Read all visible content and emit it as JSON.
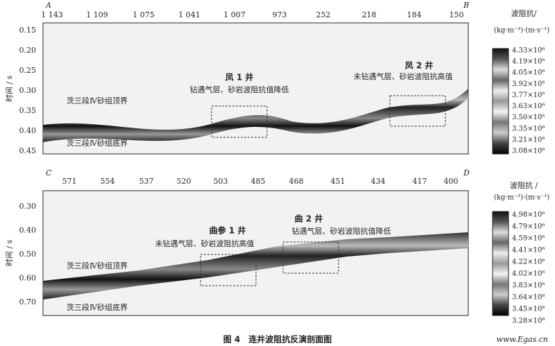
{
  "panels": [
    {
      "corner_left": "A",
      "corner_right": "B",
      "trace_labels": [
        "1 143",
        "1 109",
        "1 075",
        "1 041",
        "1 007",
        "973",
        "252",
        "218",
        "184",
        "150"
      ],
      "y_axis_label": "时间 / s",
      "time_ticks": [
        "0.15",
        "0.20",
        "0.25",
        "0.30",
        "0.35",
        "0.40",
        "0.45"
      ],
      "wells": [
        {
          "name": "凤 1 井",
          "note": "钻遇气层、砂岩波阻抗值降低"
        },
        {
          "name": "凤 2 井",
          "note": "未钻遇气层、砂岩波阻抗高值"
        }
      ],
      "top_label": "茨三段Ⅳ砂组顶界",
      "bottom_label": "茨三段Ⅳ砂组底界",
      "colorbar": {
        "title": "波阻抗/",
        "unit": "(kg·m⁻³)·(m·s⁻¹)",
        "ticks": [
          "4.33×10⁶",
          "4.19×10⁶",
          "4.05×10⁶",
          "3.92×10⁶",
          "3.77×10⁶",
          "3.63×10⁶",
          "3.50×10⁶",
          "3.35×10⁶",
          "3.21×10⁶",
          "3.08×10⁶"
        ]
      }
    },
    {
      "corner_left": "C",
      "corner_right": "D",
      "trace_labels": [
        "571",
        "554",
        "537",
        "520",
        "503",
        "485",
        "468",
        "451",
        "434",
        "417",
        "400"
      ],
      "y_axis_label": "时间 / s",
      "time_ticks": [
        "0.30",
        "0.40",
        "0.50",
        "0.60",
        "0.70"
      ],
      "wells": [
        {
          "name": "曲参 1 井",
          "note": "未钻遇气层、砂岩波阻抗高值"
        },
        {
          "name": "曲 2 井",
          "note": "钻遇气层、砂岩波阻抗值降低"
        }
      ],
      "top_label": "茨三段Ⅳ砂组顶界",
      "bottom_label": "茨三段Ⅳ砂组底界",
      "colorbar": {
        "title": "波阻抗 /",
        "unit": "(kg·m⁻³)·(m·s⁻¹)",
        "ticks": [
          "4.98×10⁶",
          "4.79×10⁶",
          "4.59×10⁶",
          "4.41×10⁶",
          "4.22×10⁶",
          "4.02×10⁶",
          "3.83×10⁶",
          "3.64×10⁶",
          "3.45×10⁶",
          "3.28×10⁶"
        ]
      }
    }
  ],
  "caption": "图 4　连井波阻抗反演剖面图",
  "watermark": "www.Egas.cn"
}
